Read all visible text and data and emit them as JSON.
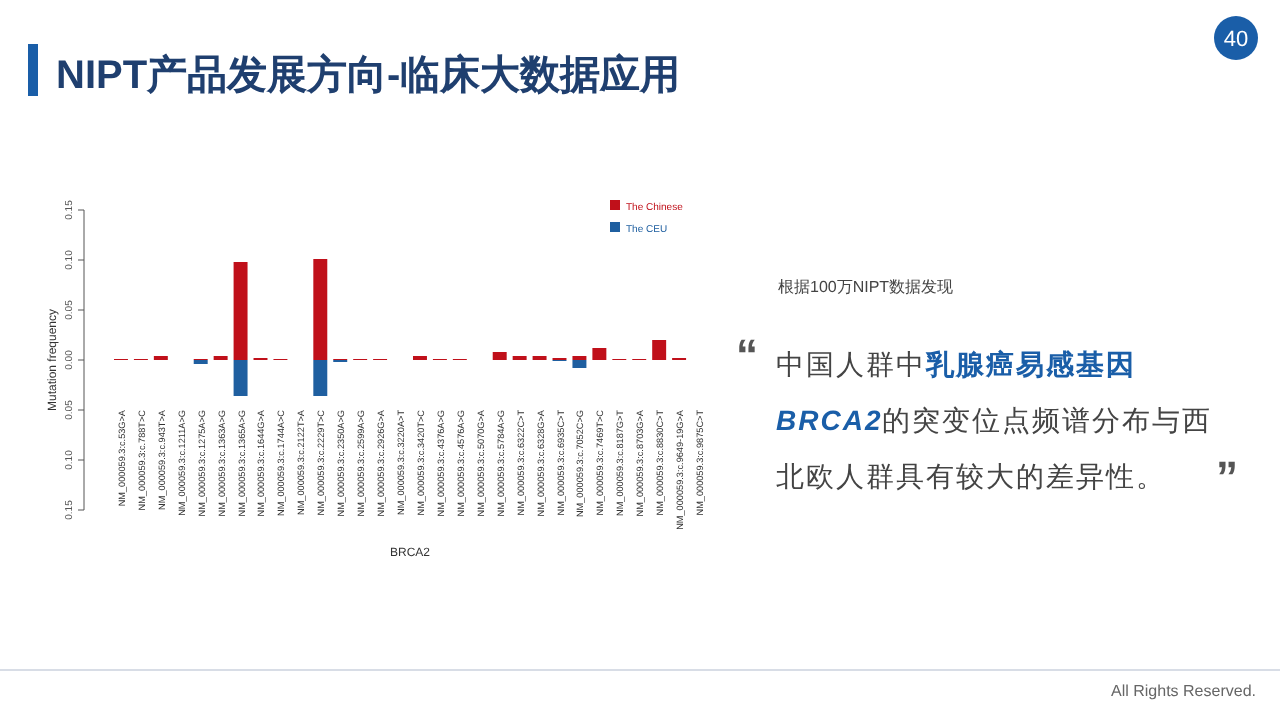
{
  "chart_data": {
    "type": "bar",
    "title": "NIPT产品发展方向-临床大数据应用",
    "xlabel": "BRCA2",
    "ylabel": "Mutation frequency",
    "categories": [
      "NM_000059.3:c.53G>A",
      "NM_000059.3:c.788T>C",
      "NM_000059.3:c.943T>A",
      "NM_000059.3:c.1211A>G",
      "NM_000059.3:c.1275A>G",
      "NM_000059.3:c.1363A>G",
      "NM_000059.3:c.1365A>G",
      "NM_000059.3:c.1644G>A",
      "NM_000059.3:c.1744A>C",
      "NM_000059.3:c.2122T>A",
      "NM_000059.3:c.2229T>C",
      "NM_000059.3:c.2350A>G",
      "NM_000059.3:c.2599A>G",
      "NM_000059.3:c.2926G>A",
      "NM_000059.3:c.3220A>T",
      "NM_000059.3:c.3420T>C",
      "NM_000059.3:c.4376A>G",
      "NM_000059.3:c.4576A>G",
      "NM_000059.3:c.5070G>A",
      "NM_000059.3:c.5784A>G",
      "NM_000059.3:c.6322C>T",
      "NM_000059.3:c.6328G>A",
      "NM_000059.3:c.6935C>T",
      "NM_000059.3:c.7052C>G",
      "NM_000059.3:c.7469T>C",
      "NM_000059.3:c.8187G>T",
      "NM_000059.3:c.8703G>A",
      "NM_000059.3:c.8830C>T",
      "NM_000059.3:c.9649-19G>A",
      "NM_000059.3:c.9875C>T"
    ],
    "series": [
      {
        "name": "The Chinese",
        "color": "#c0101a",
        "values": [
          0.001,
          0.001,
          0.004,
          0,
          0.001,
          0.004,
          0.098,
          0.002,
          0.001,
          0,
          0.101,
          0.001,
          0.001,
          0.001,
          0,
          0.004,
          0.001,
          0.001,
          0,
          0.008,
          0.004,
          0.004,
          0.002,
          0.004,
          0.012,
          0.001,
          0.001,
          0.02,
          0.002,
          0
        ]
      },
      {
        "name": "The CEU",
        "color": "#1f5fa0",
        "values": [
          0,
          0,
          0,
          0,
          -0.004,
          0,
          -0.036,
          0,
          0,
          0,
          -0.036,
          -0.002,
          0,
          0,
          0,
          0,
          0,
          0,
          0,
          0,
          0,
          0,
          -0.001,
          -0.008,
          0,
          0,
          0,
          0,
          0,
          0
        ]
      }
    ],
    "ylim": [
      -0.15,
      0.15
    ],
    "yticks": [
      {
        "value": -0.15,
        "label": "0.15"
      },
      {
        "value": -0.1,
        "label": "0.10"
      },
      {
        "value": -0.05,
        "label": "0.05"
      },
      {
        "value": 0,
        "label": "0.00"
      },
      {
        "value": 0.05,
        "label": "0.05"
      },
      {
        "value": 0.1,
        "label": "0.10"
      },
      {
        "value": 0.15,
        "label": "0.15"
      }
    ],
    "legend": "top right",
    "annotations": [
      "根据100万NIPT数据发现",
      "“",
      "中国人群中",
      "乳腺癌易感基因",
      "BRCA2",
      "的突变位点频谱分布与西北欧人群具有较大的差异性。",
      "”",
      "40",
      "All Rights Reserved."
    ]
  }
}
